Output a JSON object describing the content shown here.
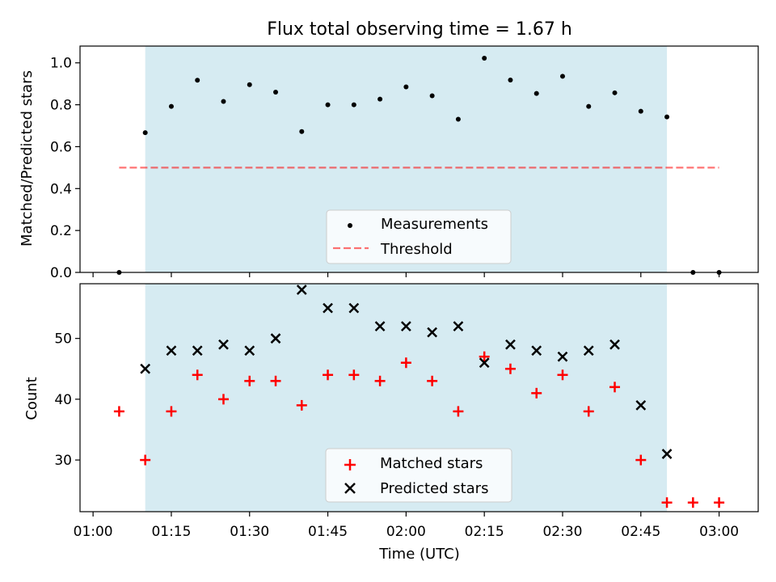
{
  "title": "Flux total observing time = 1.67 h",
  "x_tick_labels": [
    "01:00",
    "01:15",
    "01:30",
    "01:45",
    "02:00",
    "02:15",
    "02:30",
    "02:45",
    "03:00"
  ],
  "x_tick_minutes": [
    0,
    15,
    30,
    45,
    60,
    75,
    90,
    105,
    120
  ],
  "x_axis_label": "Time (UTC)",
  "shaded_span_minutes": [
    10,
    110
  ],
  "colors": {
    "span": "#add8e6",
    "measurement": "#000000",
    "threshold": "#ff0000",
    "matched": "#ff0000",
    "predicted": "#000000"
  },
  "chart_data": [
    {
      "type": "scatter",
      "title": "Flux total observing time = 1.67 h",
      "xlabel": "",
      "ylabel": "Matched/Predicted stars",
      "ylim": [
        0,
        1.08
      ],
      "yticks": [
        0.0,
        0.2,
        0.4,
        0.6,
        0.8,
        1.0
      ],
      "ytick_labels": [
        "0.0",
        "0.2",
        "0.4",
        "0.6",
        "0.8",
        "1.0"
      ],
      "legend_position": "lower center",
      "series": [
        {
          "name": "Measurements",
          "marker": "dot",
          "x": [
            5,
            10,
            15,
            20,
            25,
            30,
            35,
            40,
            45,
            50,
            55,
            60,
            65,
            70,
            75,
            80,
            85,
            90,
            95,
            100,
            105,
            110,
            115,
            120
          ],
          "y": [
            0.0,
            0.667,
            0.792,
            0.917,
            0.816,
            0.896,
            0.86,
            0.672,
            0.8,
            0.8,
            0.827,
            0.885,
            0.843,
            0.731,
            1.022,
            0.918,
            0.854,
            0.936,
            0.792,
            0.857,
            0.769,
            0.742,
            0.0,
            0.0
          ]
        },
        {
          "name": "Threshold",
          "style": "dashed",
          "x": [
            5,
            120
          ],
          "y": [
            0.5,
            0.5
          ]
        }
      ]
    },
    {
      "type": "scatter",
      "xlabel": "Time (UTC)",
      "ylabel": "Count",
      "ylim": [
        21.5,
        59
      ],
      "yticks": [
        30,
        40,
        50
      ],
      "ytick_labels": [
        "30",
        "40",
        "50"
      ],
      "legend_position": "lower center",
      "series": [
        {
          "name": "Matched stars",
          "marker": "plus",
          "x": [
            5,
            10,
            15,
            20,
            25,
            30,
            35,
            40,
            45,
            50,
            55,
            60,
            65,
            70,
            75,
            80,
            85,
            90,
            95,
            100,
            105,
            110,
            115,
            120
          ],
          "y": [
            38,
            30,
            38,
            44,
            40,
            43,
            43,
            39,
            44,
            44,
            43,
            46,
            43,
            38,
            47,
            45,
            41,
            44,
            38,
            42,
            30,
            23,
            23,
            23
          ]
        },
        {
          "name": "Predicted stars",
          "marker": "x",
          "x": [
            10,
            15,
            20,
            25,
            30,
            35,
            40,
            45,
            50,
            55,
            60,
            65,
            70,
            75,
            80,
            85,
            90,
            95,
            100,
            105,
            110
          ],
          "y": [
            45,
            48,
            48,
            49,
            48,
            50,
            58,
            55,
            55,
            52,
            52,
            51,
            52,
            46,
            49,
            48,
            47,
            48,
            49,
            39,
            31
          ]
        }
      ]
    }
  ]
}
